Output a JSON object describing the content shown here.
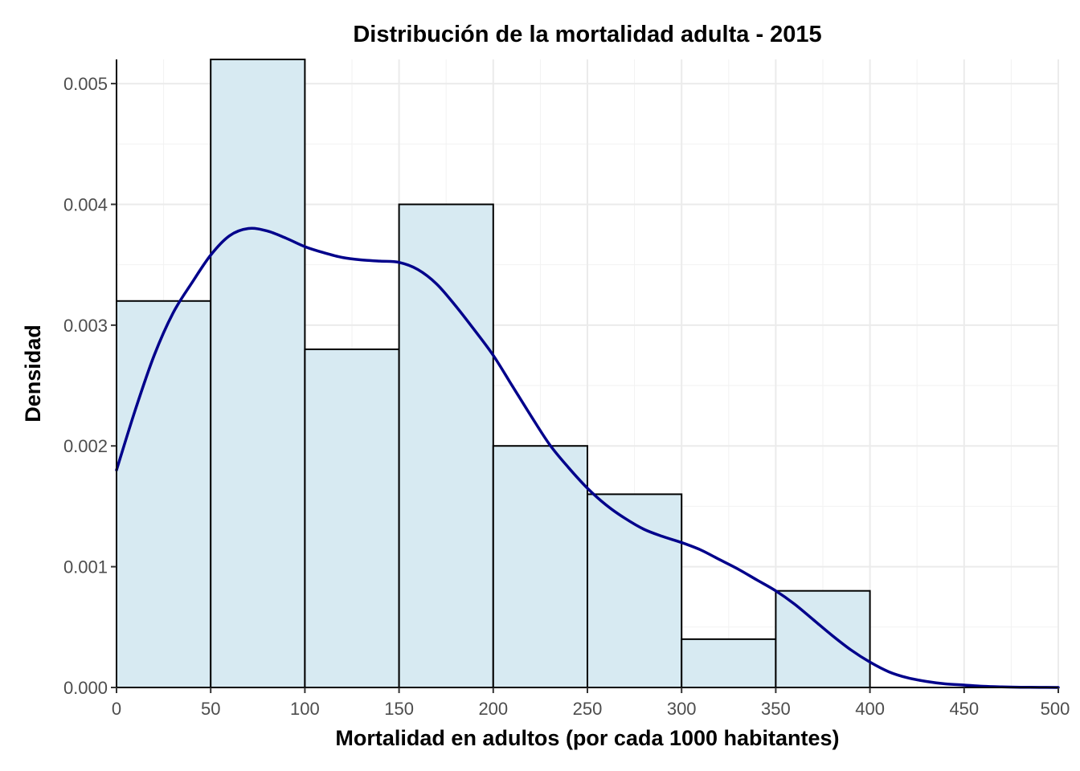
{
  "chart_data": {
    "type": "bar",
    "subtype": "histogram-with-density",
    "title": "Distribución de la mortalidad adulta - 2015",
    "xlabel": "Mortalidad en adultos (por cada 1000 habitantes)",
    "ylabel": "Densidad",
    "xlim": [
      0,
      500
    ],
    "ylim": [
      0,
      0.0052
    ],
    "x_ticks": [
      0,
      50,
      100,
      150,
      200,
      250,
      300,
      350,
      400,
      450,
      500
    ],
    "x_tick_labels": [
      "0",
      "50",
      "100",
      "150",
      "200",
      "250",
      "300",
      "350",
      "400",
      "450",
      "500"
    ],
    "y_ticks": [
      0,
      0.001,
      0.002,
      0.003,
      0.004,
      0.005
    ],
    "y_tick_labels": [
      "0.000",
      "0.001",
      "0.002",
      "0.003",
      "0.004",
      "0.005"
    ],
    "grid": true,
    "bins": [
      {
        "x0": 0,
        "x1": 50,
        "density": 0.0032
      },
      {
        "x0": 50,
        "x1": 100,
        "density": 0.0052
      },
      {
        "x0": 100,
        "x1": 150,
        "density": 0.0028
      },
      {
        "x0": 150,
        "x1": 200,
        "density": 0.004
      },
      {
        "x0": 200,
        "x1": 250,
        "density": 0.002
      },
      {
        "x0": 250,
        "x1": 300,
        "density": 0.0016
      },
      {
        "x0": 300,
        "x1": 350,
        "density": 0.0004
      },
      {
        "x0": 350,
        "x1": 400,
        "density": 0.0008
      }
    ],
    "bar_fill": "#d7eaf2",
    "bar_outline": "#000000",
    "density_color": "#00008b",
    "density_curve": {
      "x": [
        0,
        10,
        20,
        30,
        40,
        50,
        60,
        70,
        80,
        90,
        100,
        110,
        120,
        130,
        140,
        150,
        160,
        170,
        180,
        190,
        200,
        210,
        220,
        230,
        240,
        250,
        260,
        270,
        280,
        290,
        300,
        310,
        320,
        330,
        340,
        350,
        360,
        370,
        380,
        390,
        400,
        410,
        420,
        430,
        440,
        450,
        460,
        470,
        480,
        490,
        500
      ],
      "y": [
        0.0018,
        0.0023,
        0.00275,
        0.0031,
        0.00335,
        0.00358,
        0.00374,
        0.0038,
        0.00378,
        0.00372,
        0.00365,
        0.0036,
        0.00356,
        0.00354,
        0.00353,
        0.00352,
        0.00346,
        0.00334,
        0.00316,
        0.00296,
        0.00275,
        0.0025,
        0.00225,
        0.00201,
        0.00182,
        0.00165,
        0.00151,
        0.0014,
        0.00131,
        0.00125,
        0.0012,
        0.00114,
        0.00106,
        0.00098,
        0.00089,
        0.0008,
        0.00069,
        0.00056,
        0.00043,
        0.00031,
        0.00021,
        0.00013,
        8e-05,
        5e-05,
        3e-05,
        2e-05,
        1e-05,
        5e-06,
        2e-06,
        1e-06,
        0.0
      ]
    }
  }
}
